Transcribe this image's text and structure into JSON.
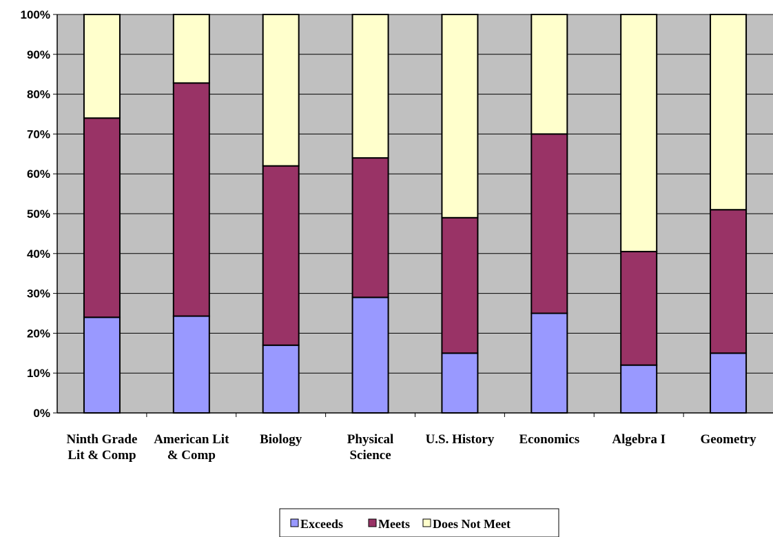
{
  "chart_data": {
    "type": "bar",
    "stacked": true,
    "percent_stacked": true,
    "categories": [
      [
        "Ninth Grade",
        "Lit & Comp"
      ],
      [
        "American Lit",
        "& Comp"
      ],
      [
        "Biology"
      ],
      [
        "Physical",
        "Science"
      ],
      [
        "U.S. History"
      ],
      [
        "Economics"
      ],
      [
        "Algebra I"
      ],
      [
        "Geometry"
      ]
    ],
    "series": [
      {
        "name": "Exceeds",
        "color": "#9999ff",
        "values": [
          24,
          24.3,
          17,
          29,
          15,
          25,
          12,
          15
        ]
      },
      {
        "name": "Meets",
        "color": "#993366",
        "values": [
          50,
          58.5,
          45,
          35,
          34,
          45,
          28.5,
          36
        ]
      },
      {
        "name": "Does Not Meet",
        "color": "#ffffcc",
        "values": [
          26,
          17.2,
          38,
          36,
          51,
          30,
          59.5,
          49
        ]
      }
    ],
    "ylim": [
      0,
      100
    ],
    "yticks": [
      "0%",
      "10%",
      "20%",
      "30%",
      "40%",
      "50%",
      "60%",
      "70%",
      "80%",
      "90%",
      "100%"
    ],
    "plot_background": "#c0c0c0",
    "grid": true,
    "legend": "bottom"
  }
}
